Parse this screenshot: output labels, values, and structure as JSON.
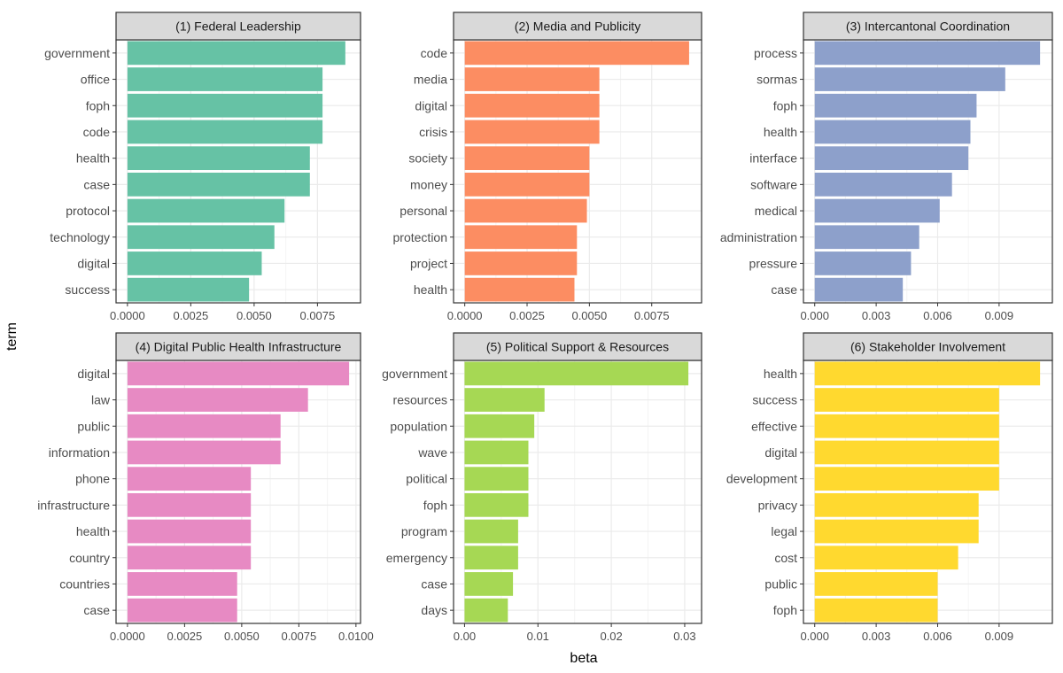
{
  "figure": {
    "y_title": "term",
    "x_title": "beta",
    "panel_fill": "#ffffff",
    "strip_fill": "#d9d9d9",
    "border_color": "#333333",
    "grid_color": "#ebebeb",
    "text_color": "#4d4d4d"
  },
  "chart_data": [
    {
      "type": "bar",
      "orientation": "horizontal",
      "title": "(1) Federal Leadership",
      "color": "#66c2a5",
      "categories": [
        "government",
        "office",
        "foph",
        "code",
        "health",
        "case",
        "protocol",
        "technology",
        "digital",
        "success"
      ],
      "values": [
        0.0086,
        0.0077,
        0.0077,
        0.0077,
        0.0072,
        0.0072,
        0.0062,
        0.0058,
        0.0053,
        0.0048
      ],
      "xlim": [
        -0.00045,
        0.0092
      ],
      "ticks": [
        0,
        0.0025,
        0.005,
        0.0075
      ],
      "tick_labels": [
        "0.0000",
        "0.0025",
        "0.0050",
        "0.0075"
      ],
      "xlabel": "beta",
      "ylabel": "term"
    },
    {
      "type": "bar",
      "orientation": "horizontal",
      "title": "(2) Media and Publicity",
      "color": "#fc8d62",
      "categories": [
        "code",
        "media",
        "digital",
        "crisis",
        "society",
        "money",
        "personal",
        "protection",
        "project",
        "health"
      ],
      "values": [
        0.009,
        0.0054,
        0.0054,
        0.0054,
        0.005,
        0.005,
        0.0049,
        0.0045,
        0.0045,
        0.0044
      ],
      "xlim": [
        -0.00045,
        0.0095
      ],
      "ticks": [
        0,
        0.0025,
        0.005,
        0.0075
      ],
      "tick_labels": [
        "0.0000",
        "0.0025",
        "0.0050",
        "0.0075"
      ],
      "xlabel": "beta",
      "ylabel": "term"
    },
    {
      "type": "bar",
      "orientation": "horizontal",
      "title": "(3) Intercantonal Coordination",
      "color": "#8da0cb",
      "categories": [
        "process",
        "sormas",
        "foph",
        "health",
        "interface",
        "software",
        "medical",
        "administration",
        "pressure",
        "case"
      ],
      "values": [
        0.011,
        0.0093,
        0.0079,
        0.0076,
        0.0075,
        0.0067,
        0.0061,
        0.0051,
        0.0047,
        0.0043
      ],
      "xlim": [
        -0.00055,
        0.0116
      ],
      "ticks": [
        0,
        0.003,
        0.006,
        0.009
      ],
      "tick_labels": [
        "0.000",
        "0.003",
        "0.006",
        "0.009"
      ],
      "xlabel": "beta",
      "ylabel": "term"
    },
    {
      "type": "bar",
      "orientation": "horizontal",
      "title": "(4) Digital Public Health Infrastructure",
      "color": "#e78ac3",
      "categories": [
        "digital",
        "law",
        "public",
        "information",
        "phone",
        "infrastructure",
        "health",
        "country",
        "countries",
        "case"
      ],
      "values": [
        0.0097,
        0.0079,
        0.0067,
        0.0067,
        0.0054,
        0.0054,
        0.0054,
        0.0054,
        0.0048,
        0.0048
      ],
      "xlim": [
        -0.0005,
        0.0102
      ],
      "ticks": [
        0,
        0.0025,
        0.005,
        0.0075,
        0.01
      ],
      "tick_labels": [
        "0.0000",
        "0.0025",
        "0.0050",
        "0.0075",
        "0.0100"
      ],
      "xlabel": "beta",
      "ylabel": "term"
    },
    {
      "type": "bar",
      "orientation": "horizontal",
      "title": "(5) Political Support & Resources",
      "color": "#a6d854",
      "categories": [
        "government",
        "resources",
        "population",
        "wave",
        "political",
        "foph",
        "program",
        "emergency",
        "case",
        "days"
      ],
      "values": [
        0.0305,
        0.0109,
        0.0095,
        0.0087,
        0.0087,
        0.0087,
        0.0073,
        0.0073,
        0.0066,
        0.0059
      ],
      "xlim": [
        -0.0015,
        0.0323
      ],
      "ticks": [
        0,
        0.01,
        0.02,
        0.03
      ],
      "tick_labels": [
        "0.00",
        "0.01",
        "0.02",
        "0.03"
      ],
      "xlabel": "beta",
      "ylabel": "term"
    },
    {
      "type": "bar",
      "orientation": "horizontal",
      "title": "(6) Stakeholder Involvement",
      "color": "#ffd92f",
      "categories": [
        "health",
        "success",
        "effective",
        "digital",
        "development",
        "privacy",
        "legal",
        "cost",
        "public",
        "foph"
      ],
      "values": [
        0.011,
        0.009,
        0.009,
        0.009,
        0.009,
        0.008,
        0.008,
        0.007,
        0.006,
        0.006
      ],
      "xlim": [
        -0.00055,
        0.0116
      ],
      "ticks": [
        0,
        0.003,
        0.006,
        0.009
      ],
      "tick_labels": [
        "0.000",
        "0.003",
        "0.006",
        "0.009"
      ],
      "xlabel": "beta",
      "ylabel": "term"
    }
  ]
}
